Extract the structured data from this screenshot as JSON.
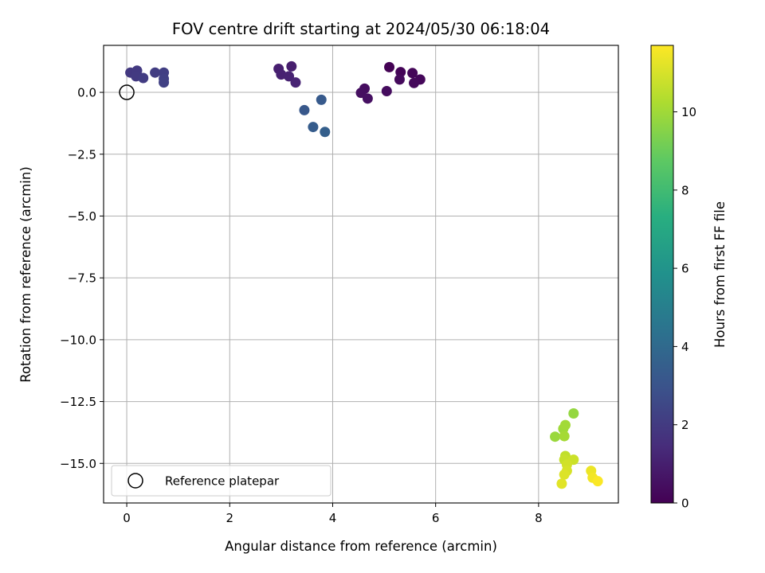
{
  "chart_data": {
    "type": "scatter",
    "title": "FOV centre drift starting at 2024/05/30 06:18:04",
    "xlabel": "Angular distance from reference (arcmin)",
    "ylabel": "Rotation from reference (arcmin)",
    "xlim": [
      -0.45,
      9.55
    ],
    "ylim": [
      -16.6,
      1.9
    ],
    "xticks": [
      0,
      2,
      4,
      6,
      8
    ],
    "xtick_labels": [
      "0",
      "2",
      "4",
      "6",
      "8"
    ],
    "yticks": [
      0,
      -2.5,
      -5,
      -7.5,
      -10,
      -12.5,
      -15
    ],
    "ytick_labels": [
      "0.0",
      "−2.5",
      "−5.0",
      "−7.5",
      "−10.0",
      "−12.5",
      "−15.0"
    ],
    "grid": true,
    "legend": {
      "placement": "lower-left",
      "entries": [
        "Reference platepar"
      ]
    },
    "reference_point": {
      "x": 0,
      "y": 0
    },
    "colorbar": {
      "label": "Hours from first FF file",
      "colormap": "viridis",
      "range": [
        0,
        11.7
      ],
      "ticks": [
        0,
        2,
        4,
        6,
        8,
        10
      ],
      "tick_labels": [
        "0",
        "2",
        "4",
        "6",
        "8",
        "10"
      ]
    },
    "points": [
      {
        "x": 5.1,
        "y": 1.02,
        "c": 0.05
      },
      {
        "x": 5.32,
        "y": 0.82,
        "c": 0.1
      },
      {
        "x": 5.55,
        "y": 0.78,
        "c": 0.15
      },
      {
        "x": 5.7,
        "y": 0.52,
        "c": 0.2
      },
      {
        "x": 5.58,
        "y": 0.38,
        "c": 0.25
      },
      {
        "x": 5.3,
        "y": 0.52,
        "c": 0.3
      },
      {
        "x": 5.05,
        "y": 0.05,
        "c": 0.35
      },
      {
        "x": 4.62,
        "y": 0.15,
        "c": 0.4
      },
      {
        "x": 4.55,
        "y": -0.02,
        "c": 0.45
      },
      {
        "x": 4.68,
        "y": -0.25,
        "c": 0.5
      },
      {
        "x": 3.2,
        "y": 1.05,
        "c": 0.95
      },
      {
        "x": 2.95,
        "y": 0.95,
        "c": 1.0
      },
      {
        "x": 3.0,
        "y": 0.72,
        "c": 1.05
      },
      {
        "x": 3.15,
        "y": 0.65,
        "c": 1.1
      },
      {
        "x": 3.28,
        "y": 0.4,
        "c": 1.15
      },
      {
        "x": 0.07,
        "y": 0.8,
        "c": 1.9
      },
      {
        "x": 0.2,
        "y": 0.88,
        "c": 1.95
      },
      {
        "x": 0.18,
        "y": 0.65,
        "c": 2.0
      },
      {
        "x": 0.32,
        "y": 0.58,
        "c": 2.05
      },
      {
        "x": 0.55,
        "y": 0.8,
        "c": 2.1
      },
      {
        "x": 0.72,
        "y": 0.8,
        "c": 2.15
      },
      {
        "x": 0.72,
        "y": 0.55,
        "c": 2.2
      },
      {
        "x": 0.72,
        "y": 0.4,
        "c": 2.25
      },
      {
        "x": 3.45,
        "y": -0.72,
        "c": 3.2
      },
      {
        "x": 3.78,
        "y": -0.3,
        "c": 3.3
      },
      {
        "x": 3.62,
        "y": -1.4,
        "c": 3.4
      },
      {
        "x": 3.85,
        "y": -1.6,
        "c": 3.5
      },
      {
        "x": 8.68,
        "y": -12.98,
        "c": 9.8
      },
      {
        "x": 8.32,
        "y": -13.92,
        "c": 9.9
      },
      {
        "x": 8.48,
        "y": -13.6,
        "c": 10.0
      },
      {
        "x": 8.52,
        "y": -13.45,
        "c": 10.05
      },
      {
        "x": 8.5,
        "y": -13.9,
        "c": 10.1
      },
      {
        "x": 8.52,
        "y": -14.7,
        "c": 10.6
      },
      {
        "x": 8.5,
        "y": -14.85,
        "c": 10.7
      },
      {
        "x": 8.68,
        "y": -14.85,
        "c": 10.8
      },
      {
        "x": 8.55,
        "y": -15.05,
        "c": 10.9
      },
      {
        "x": 8.55,
        "y": -15.3,
        "c": 11.0
      },
      {
        "x": 8.5,
        "y": -15.45,
        "c": 11.1
      },
      {
        "x": 8.45,
        "y": -15.82,
        "c": 11.2
      },
      {
        "x": 9.02,
        "y": -15.3,
        "c": 11.4
      },
      {
        "x": 9.05,
        "y": -15.58,
        "c": 11.5
      },
      {
        "x": 9.15,
        "y": -15.72,
        "c": 11.65
      }
    ]
  }
}
